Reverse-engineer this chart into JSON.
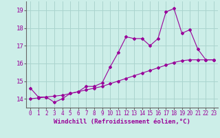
{
  "xlabel": "Windchill (Refroidissement éolien,°C)",
  "bg_color": "#cceee8",
  "grid_color": "#aad4ce",
  "line_color": "#990099",
  "xlim": [
    -0.5,
    23.5
  ],
  "ylim": [
    13.5,
    19.5
  ],
  "xticks": [
    0,
    1,
    2,
    3,
    4,
    5,
    6,
    7,
    8,
    9,
    10,
    11,
    12,
    13,
    14,
    15,
    16,
    17,
    18,
    19,
    20,
    21,
    22,
    23
  ],
  "yticks": [
    14,
    15,
    16,
    17,
    18,
    19
  ],
  "series1_x": [
    0,
    1,
    2,
    3,
    4,
    5,
    6,
    7,
    8,
    9,
    10,
    11,
    12,
    13,
    14,
    15,
    16,
    17,
    18,
    19,
    20,
    21,
    22,
    23
  ],
  "series1_y": [
    14.6,
    14.1,
    14.1,
    13.8,
    14.0,
    14.3,
    14.4,
    14.7,
    14.7,
    14.9,
    15.8,
    16.6,
    17.5,
    17.4,
    17.4,
    17.0,
    17.4,
    18.9,
    19.1,
    17.7,
    17.9,
    16.8,
    16.2,
    16.2
  ],
  "series2_x": [
    0,
    1,
    2,
    3,
    4,
    5,
    6,
    7,
    8,
    9,
    10,
    11,
    12,
    13,
    14,
    15,
    16,
    17,
    18,
    19,
    20,
    21,
    22,
    23
  ],
  "series2_y": [
    14.0,
    14.05,
    14.1,
    14.15,
    14.2,
    14.3,
    14.4,
    14.5,
    14.6,
    14.7,
    14.85,
    15.0,
    15.15,
    15.3,
    15.45,
    15.6,
    15.75,
    15.9,
    16.05,
    16.15,
    16.2,
    16.2,
    16.2,
    16.2
  ],
  "marker": "D",
  "markersize": 2.0,
  "linewidth": 0.8,
  "tick_labelsize": 5.5,
  "xlabel_fontsize": 6.5
}
